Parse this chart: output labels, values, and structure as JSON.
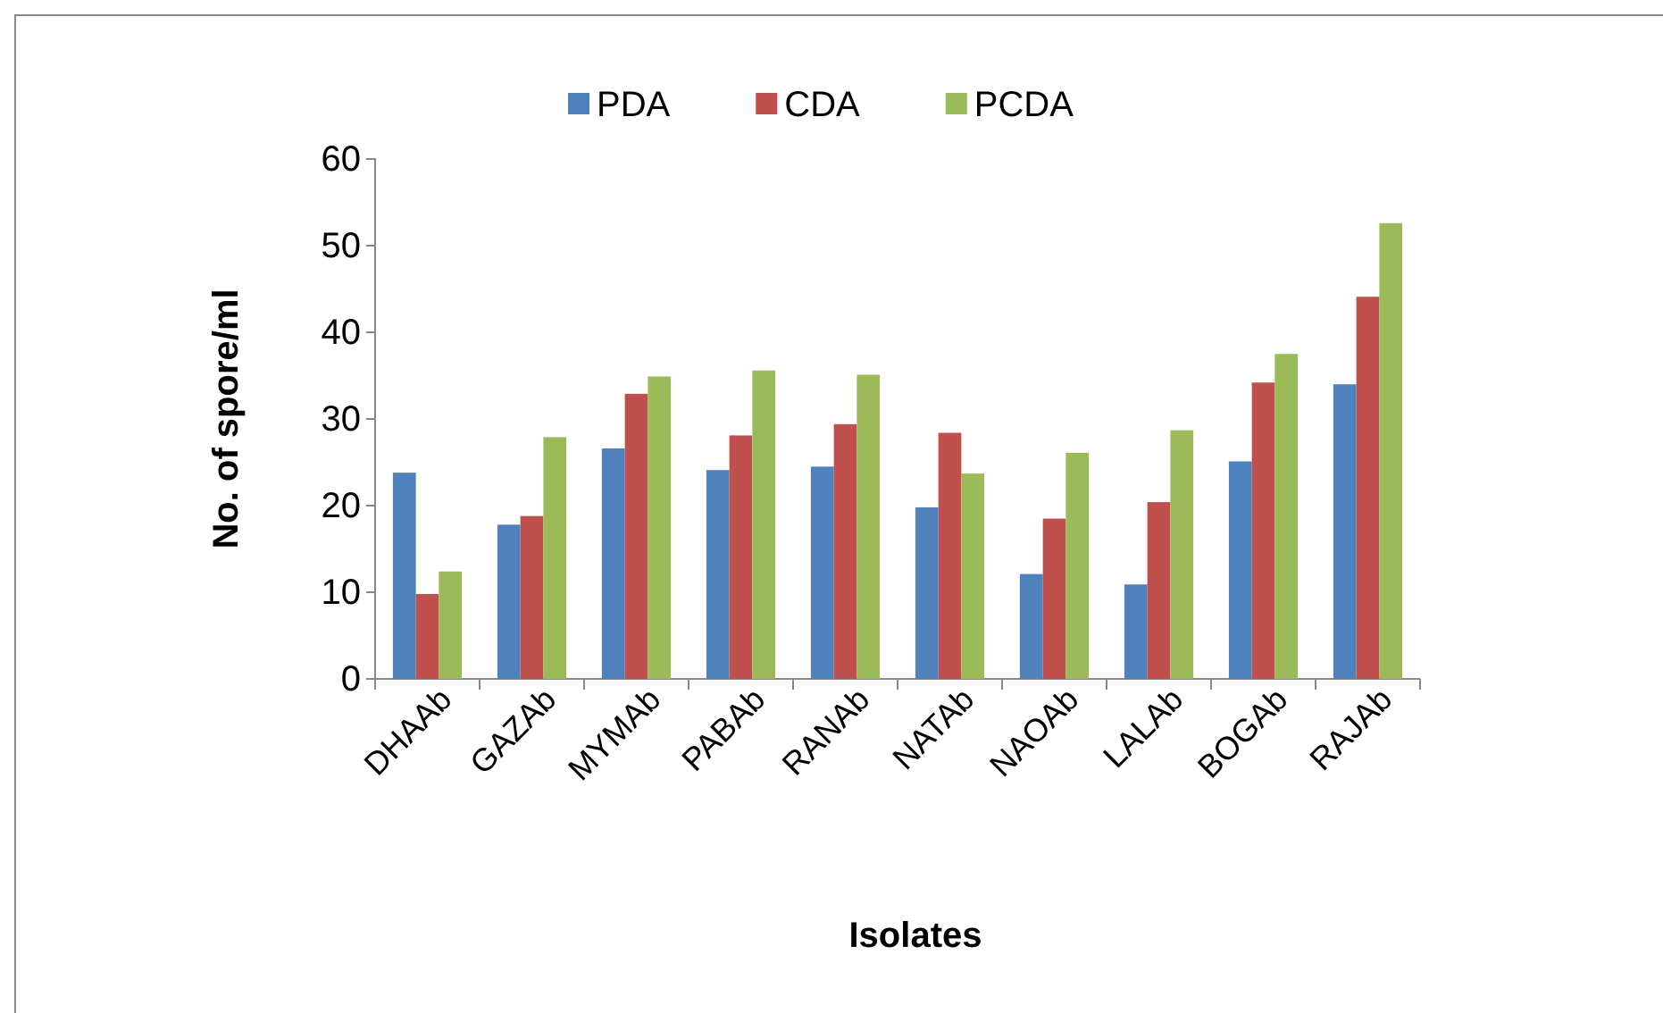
{
  "chart_data": {
    "type": "bar",
    "xlabel": "Isolates",
    "ylabel": "No. of spore/ml",
    "categories": [
      "DHAAb",
      "GAZAb",
      "MYMAb",
      "PABAb",
      "RANAb",
      "NATAb",
      "NAOAb",
      "LALAb",
      "BOGAb",
      "RAJAb"
    ],
    "series": [
      {
        "name": "PDA",
        "color": "#4f81bd",
        "values": [
          23.8,
          17.8,
          26.6,
          24.1,
          24.5,
          19.8,
          12.1,
          10.9,
          25.1,
          34.0
        ]
      },
      {
        "name": "CDA",
        "color": "#c0504d",
        "values": [
          9.8,
          18.8,
          32.9,
          28.1,
          29.4,
          28.4,
          18.5,
          20.4,
          34.2,
          44.1
        ]
      },
      {
        "name": "PCDA",
        "color": "#9bbb59",
        "values": [
          12.4,
          27.9,
          34.9,
          35.6,
          35.1,
          23.7,
          26.1,
          28.7,
          37.5,
          52.6
        ]
      }
    ],
    "ylim": [
      0,
      60
    ],
    "yticks": [
      0,
      10,
      20,
      30,
      40,
      50,
      60
    ],
    "grid": false,
    "legend": "top"
  }
}
